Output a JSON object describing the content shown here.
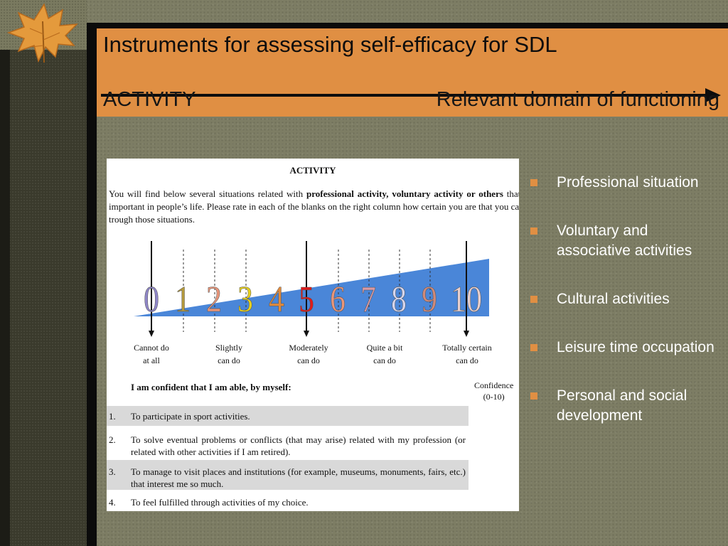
{
  "header": {
    "title": "Instruments for assessing self-efficacy for SDL",
    "left_heading": "ACTIVITY",
    "right_heading": "Relevant domain of functioning"
  },
  "document": {
    "title": "ACTIVITY",
    "intro": {
      "part1": "You will find below several situations related with ",
      "bold": "professional activity, voluntary activity or others",
      "part2": " that are important in people’s life. Please rate in each of the blanks on the right column how certain you are that you can go trough those situations."
    },
    "scale": {
      "numbers": [
        "0",
        "1",
        "2",
        "3",
        "4",
        "5",
        "6",
        "7",
        "8",
        "9",
        "10"
      ],
      "number_colors": [
        "#8f86c8",
        "#b59a3c",
        "#e9967a",
        "#e8d11c",
        "#e08a3c",
        "#e01a1a",
        "#e9967a",
        "#d99aa6",
        "#d6d6ee",
        "#d08a7a",
        "#e8d0d0"
      ],
      "anchors": [
        {
          "line1": "Cannot do",
          "line2": "at all"
        },
        {
          "line1": "Slightly",
          "line2": "can do"
        },
        {
          "line1": "Moderately",
          "line2": "can do"
        },
        {
          "line1": "Quite a bit",
          "line2": "can do"
        },
        {
          "line1": "Totally certain",
          "line2": "can do"
        }
      ],
      "wedge_color": "#4a86d8"
    },
    "confident_label": "I am confident that I am able, by myself:",
    "confidence_header": {
      "line1": "Confidence",
      "line2": "(0-10)"
    },
    "items": [
      {
        "num": "1.",
        "text": "To participate in sport activities."
      },
      {
        "num": "2.",
        "text": "To solve eventual problems or conflicts (that may arise) related with my profession (or related with other activities if I am retired)."
      },
      {
        "num": "3.",
        "text": "To manage to visit places and institutions (for example, museums, monuments, fairs, etc.) that interest me so much."
      },
      {
        "num": "4.",
        "text": "To feel fulfilled through activities of my choice."
      }
    ]
  },
  "domains": [
    "Professional situation",
    "Voluntary and associative activities",
    "Cultural activities",
    "Leisure time occupation",
    "Personal and social development"
  ],
  "colors": {
    "accent": "#e08f43",
    "frame": "#0b0b0b",
    "background": "#7d7d64"
  }
}
